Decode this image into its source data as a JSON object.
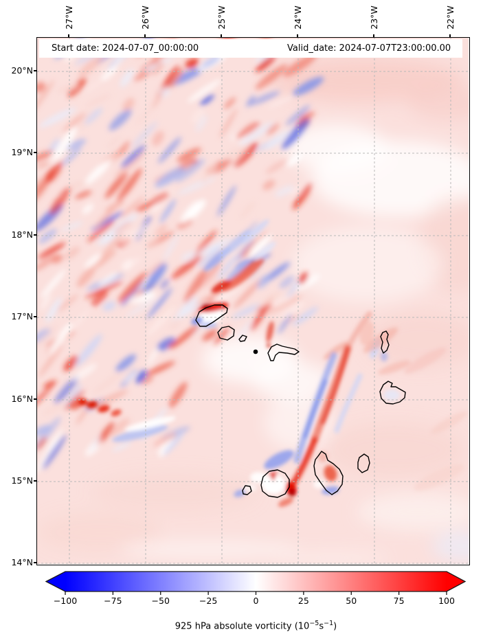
{
  "header": {
    "start_date_label": "Start date: 2024-07-07_00:00:00",
    "valid_date_label": "Valid_date: 2024-07-07T23:00:00.00"
  },
  "axes": {
    "lon_ticks": [
      "27°W",
      "26°W",
      "25°W",
      "24°W",
      "23°W",
      "22°W"
    ],
    "lat_ticks": [
      "20°N",
      "19°N",
      "18°N",
      "17°N",
      "16°N",
      "15°N",
      "14°N"
    ]
  },
  "colorbar": {
    "tick_labels": [
      "−100",
      "−75",
      "−50",
      "−25",
      "0",
      "25",
      "50",
      "75",
      "100"
    ],
    "label": {
      "base": "925 hPa absolute vorticity (10",
      "exp1": "−5",
      "unit": "s",
      "exp2": "−1",
      "close": ")"
    },
    "min_color": "#0000ff",
    "zero_color": "#ffffff",
    "max_color": "#ff0000"
  },
  "chart_data": {
    "type": "heatmap",
    "variable": "925 hPa absolute vorticity",
    "units": "10^-5 s^-1",
    "colormap": "bwr",
    "color_range": [
      -100,
      100
    ],
    "extend": "both",
    "colorbar_ticks": [
      -100,
      -75,
      -50,
      -25,
      0,
      25,
      50,
      75,
      100
    ],
    "annotations": {
      "start_date": "2024-07-07_00:00:00",
      "valid_date": "2024-07-07T23:00:00.00"
    },
    "lon_tick_values_deg_west": [
      27,
      26,
      25,
      24,
      23,
      22
    ],
    "lat_tick_values_deg_north": [
      20,
      19,
      18,
      17,
      16,
      15,
      14
    ],
    "approx_extent": {
      "west": -27.4,
      "east": -21.7,
      "south": 14.0,
      "north": 20.4
    },
    "grid": "dashed gray graticule every 1 degree",
    "coastlines": "Cape Verde island outlines drawn in black (unlabeled)",
    "coarse_grid_estimate": {
      "lats": [
        20.25,
        19.75,
        19.25,
        18.75,
        18.25,
        17.75,
        17.25,
        16.75,
        16.25,
        15.75,
        15.25,
        14.75,
        14.25
      ],
      "lons": [
        -27.25,
        -26.75,
        -26.25,
        -25.75,
        -25.25,
        -24.75,
        -24.25,
        -23.75,
        -23.25,
        -22.75,
        -22.25,
        -21.75
      ],
      "values": [
        [
          20,
          35,
          -10,
          40,
          25,
          -15,
          30,
          10,
          5,
          5,
          10,
          10
        ],
        [
          -15,
          40,
          30,
          -20,
          45,
          20,
          -10,
          15,
          5,
          10,
          10,
          5
        ],
        [
          25,
          -20,
          45,
          35,
          -15,
          40,
          15,
          5,
          10,
          5,
          5,
          10
        ],
        [
          30,
          25,
          -25,
          50,
          30,
          -20,
          20,
          10,
          5,
          10,
          10,
          10
        ],
        [
          -10,
          35,
          40,
          -15,
          45,
          25,
          10,
          -10,
          10,
          5,
          10,
          5
        ],
        [
          20,
          -15,
          30,
          35,
          -20,
          -25,
          15,
          10,
          5,
          10,
          5,
          10
        ],
        [
          25,
          30,
          -20,
          40,
          60,
          -15,
          10,
          5,
          -5,
          10,
          10,
          10
        ],
        [
          15,
          -10,
          35,
          -15,
          20,
          40,
          15,
          -10,
          5,
          -10,
          10,
          5
        ],
        [
          20,
          25,
          -15,
          30,
          10,
          -20,
          35,
          10,
          -5,
          10,
          5,
          10
        ],
        [
          10,
          50,
          30,
          -20,
          15,
          25,
          -15,
          20,
          10,
          5,
          10,
          10
        ],
        [
          15,
          10,
          -10,
          20,
          -15,
          45,
          25,
          -20,
          10,
          10,
          5,
          10
        ],
        [
          10,
          5,
          10,
          15,
          60,
          -30,
          20,
          15,
          10,
          5,
          10,
          5
        ],
        [
          10,
          10,
          5,
          10,
          10,
          15,
          10,
          5,
          10,
          10,
          5,
          10
        ]
      ]
    },
    "notable_features": [
      "noisy filamentary +/- vorticity field over NW quadrant",
      "strong positive (red) maximum on north edge of Santo Antao island near 17.1N 25.2W",
      "elongated positive vorticity filament from ~16.8N 23.8W SW toward Fogo at ~15N 24.4W with negative flank on its west side",
      "strong positive maximum east of Fogo near 14.9N 24.3W",
      "cluster of strong positive cells near 16N 26.6W",
      "smooth weakly positive background (~+10) over east and south of domain"
    ]
  }
}
